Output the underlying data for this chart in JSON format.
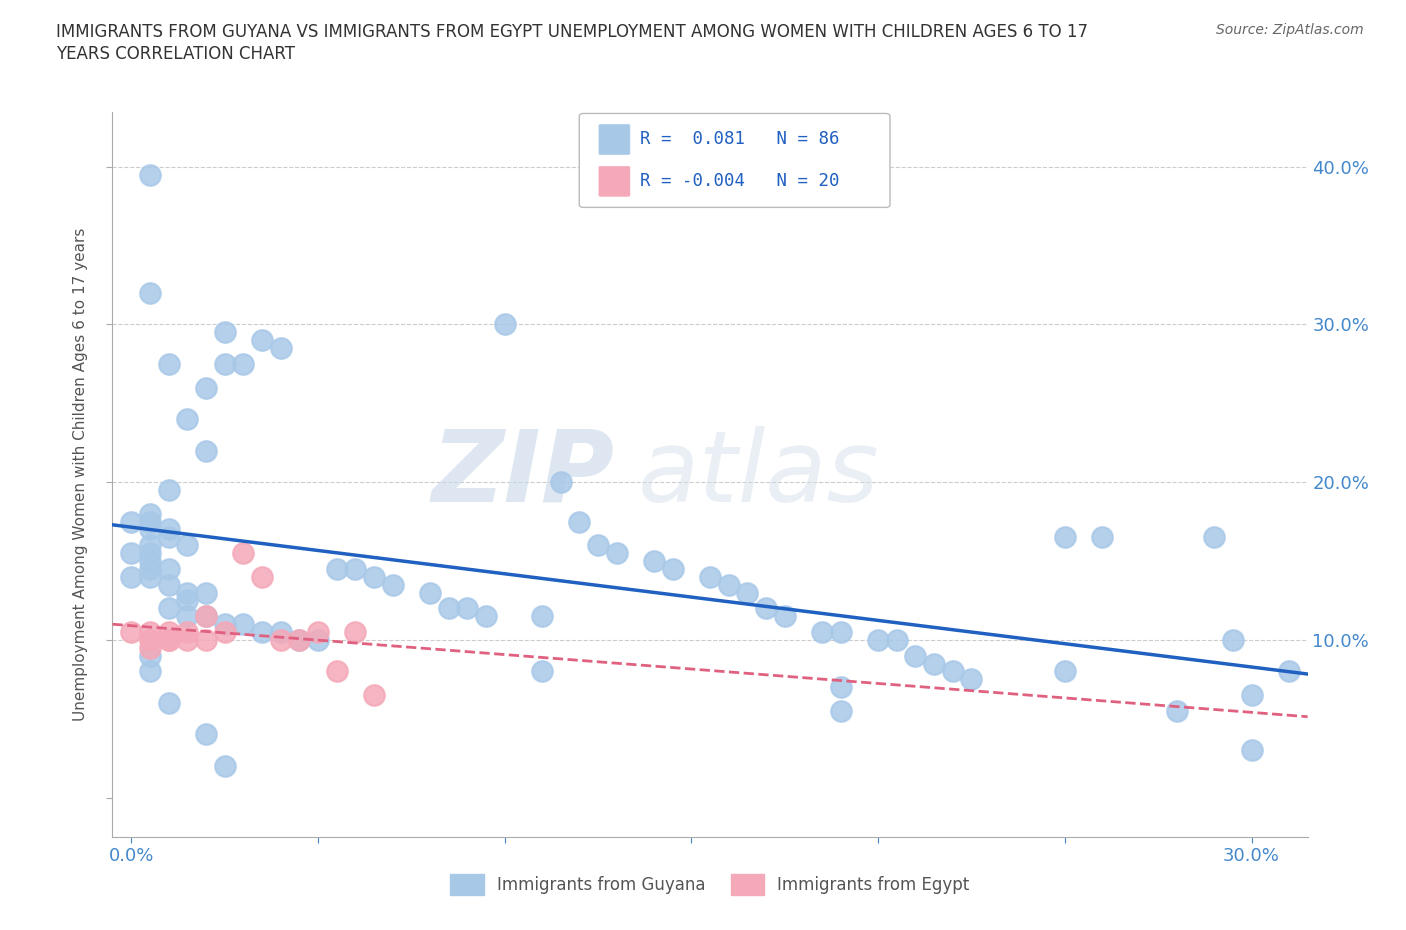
{
  "title_line1": "IMMIGRANTS FROM GUYANA VS IMMIGRANTS FROM EGYPT UNEMPLOYMENT AMONG WOMEN WITH CHILDREN AGES 6 TO 17",
  "title_line2": "YEARS CORRELATION CHART",
  "source": "Source: ZipAtlas.com",
  "xlim": [
    -0.005,
    0.315
  ],
  "ylim": [
    -0.025,
    0.435
  ],
  "guyana_R": "0.081",
  "guyana_N": "86",
  "egypt_R": "-0.004",
  "egypt_N": "20",
  "guyana_color": "#a8c8e8",
  "egypt_color": "#f4a8b8",
  "guyana_line_color": "#2060c0",
  "egypt_line_color": "#e06080",
  "watermark_zip": "ZIP",
  "watermark_atlas": "atlas",
  "background_color": "#ffffff",
  "grid_color": "#cccccc",
  "guyana_x": [
    0.005,
    0.01,
    0.015,
    0.02,
    0.025,
    0.03,
    0.035,
    0.04,
    0.005,
    0.01,
    0.015,
    0.02,
    0.025,
    0.0,
    0.005,
    0.01,
    0.005,
    0.01,
    0.005,
    0.0,
    0.005,
    0.005,
    0.01,
    0.005,
    0.0,
    0.005,
    0.01,
    0.015,
    0.02,
    0.015,
    0.01,
    0.02,
    0.015,
    0.025,
    0.03,
    0.035,
    0.04,
    0.045,
    0.05,
    0.055,
    0.06,
    0.065,
    0.07,
    0.08,
    0.085,
    0.09,
    0.095,
    0.1,
    0.11,
    0.115,
    0.12,
    0.125,
    0.13,
    0.14,
    0.145,
    0.155,
    0.16,
    0.165,
    0.17,
    0.175,
    0.185,
    0.19,
    0.2,
    0.205,
    0.21,
    0.215,
    0.22,
    0.225,
    0.25,
    0.26,
    0.29,
    0.295,
    0.005,
    0.19,
    0.3,
    0.31,
    0.005,
    0.01,
    0.02,
    0.025,
    0.005,
    0.11,
    0.19,
    0.3,
    0.28,
    0.25
  ],
  "guyana_y": [
    0.32,
    0.275,
    0.24,
    0.26,
    0.295,
    0.275,
    0.29,
    0.285,
    0.18,
    0.195,
    0.16,
    0.22,
    0.275,
    0.175,
    0.175,
    0.17,
    0.17,
    0.165,
    0.16,
    0.155,
    0.155,
    0.15,
    0.145,
    0.145,
    0.14,
    0.14,
    0.135,
    0.13,
    0.13,
    0.125,
    0.12,
    0.115,
    0.115,
    0.11,
    0.11,
    0.105,
    0.105,
    0.1,
    0.1,
    0.145,
    0.145,
    0.14,
    0.135,
    0.13,
    0.12,
    0.12,
    0.115,
    0.3,
    0.115,
    0.2,
    0.175,
    0.16,
    0.155,
    0.15,
    0.145,
    0.14,
    0.135,
    0.13,
    0.12,
    0.115,
    0.105,
    0.105,
    0.1,
    0.1,
    0.09,
    0.085,
    0.08,
    0.075,
    0.165,
    0.165,
    0.165,
    0.1,
    0.395,
    0.055,
    0.065,
    0.08,
    0.08,
    0.06,
    0.04,
    0.02,
    0.09,
    0.08,
    0.07,
    0.03,
    0.055,
    0.08
  ],
  "egypt_x": [
    0.0,
    0.005,
    0.005,
    0.005,
    0.01,
    0.01,
    0.01,
    0.015,
    0.015,
    0.02,
    0.02,
    0.025,
    0.03,
    0.035,
    0.04,
    0.045,
    0.05,
    0.055,
    0.06,
    0.065
  ],
  "egypt_y": [
    0.105,
    0.105,
    0.1,
    0.095,
    0.105,
    0.1,
    0.1,
    0.105,
    0.1,
    0.115,
    0.1,
    0.105,
    0.155,
    0.14,
    0.1,
    0.1,
    0.105,
    0.08,
    0.105,
    0.065
  ]
}
